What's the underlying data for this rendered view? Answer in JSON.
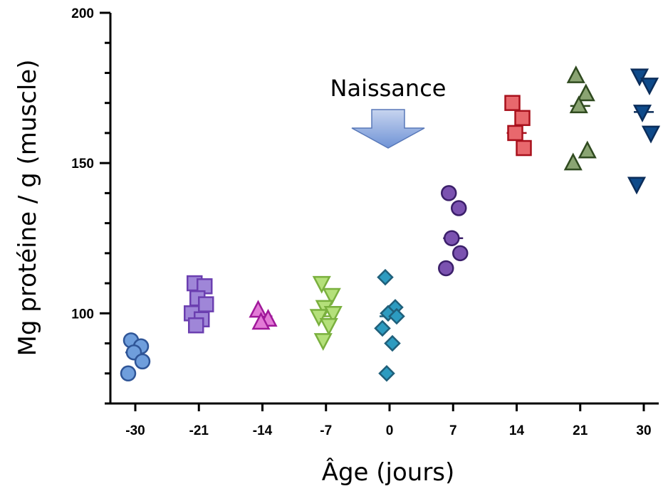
{
  "chart_data": {
    "type": "scatter",
    "title": "",
    "xlabel": "Âge (jours)",
    "ylabel": "Mg protéine / g (muscle)",
    "ylim": [
      70,
      200
    ],
    "yticks": [
      100,
      150,
      200
    ],
    "categories": [
      "-30",
      "-21",
      "-14",
      "-7",
      "0",
      "7",
      "14",
      "21",
      "30"
    ],
    "annotation": {
      "text": "Naissance",
      "at_category": "0"
    },
    "series": [
      {
        "category": "-30",
        "marker": "circle",
        "color": "#6f9edc",
        "stroke": "#2f5597",
        "mean": 87,
        "values": [
          91,
          89,
          87,
          84,
          80
        ]
      },
      {
        "category": "-21",
        "marker": "square",
        "color": "#9f86d8",
        "stroke": "#6b3fb0",
        "mean": 100,
        "values": [
          110,
          109,
          105,
          103,
          100,
          98,
          96
        ]
      },
      {
        "category": "-14",
        "marker": "triangle-up",
        "color": "#e27ad6",
        "stroke": "#a0189a",
        "mean": 99,
        "values": [
          101,
          98,
          97
        ]
      },
      {
        "category": "-7",
        "marker": "triangle-down",
        "color": "#b4e07a",
        "stroke": "#7ab03e",
        "mean": 99,
        "values": [
          110,
          106,
          102,
          100,
          99,
          96,
          91
        ]
      },
      {
        "category": "0",
        "marker": "diamond",
        "color": "#2d9bc0",
        "stroke": "#1f5f7a",
        "mean": 99,
        "values": [
          112,
          102,
          100,
          99,
          95,
          90,
          80
        ]
      },
      {
        "category": "7",
        "marker": "circle",
        "color": "#7b52b0",
        "stroke": "#3b1f6a",
        "mean": 125,
        "values": [
          140,
          135,
          125,
          120,
          115
        ]
      },
      {
        "category": "14",
        "marker": "square",
        "color": "#e8686d",
        "stroke": "#a8101c",
        "mean": 160,
        "values": [
          170,
          165,
          160,
          155
        ]
      },
      {
        "category": "21",
        "marker": "triangle-up",
        "color": "#8aa472",
        "stroke": "#2f4a1f",
        "mean": 169,
        "values": [
          179,
          173,
          169,
          154,
          150
        ]
      },
      {
        "category": "30",
        "marker": "triangle-down",
        "color": "#0e4a8a",
        "stroke": "#0b2d5a",
        "mean": 167,
        "values": [
          179,
          176,
          167,
          160,
          143
        ]
      }
    ]
  }
}
